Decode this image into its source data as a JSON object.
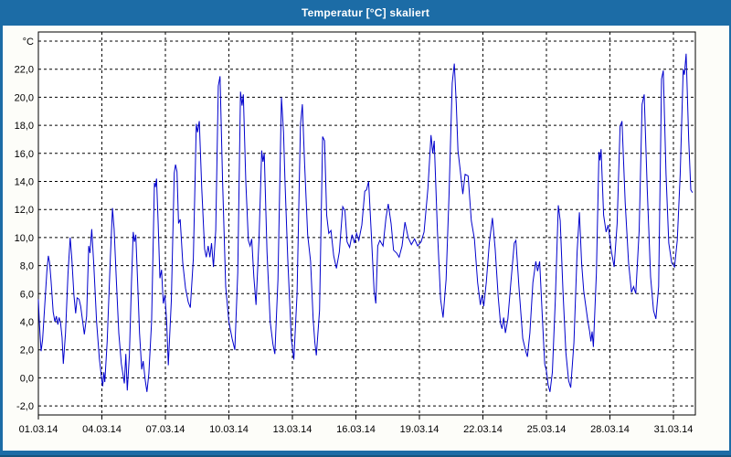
{
  "window": {
    "title": "Temperatur [°C] skaliert"
  },
  "colors": {
    "titlebar_bg": "#1C6CA6",
    "titlebar_text": "#FFFFFF",
    "window_border": "#1C6CA6",
    "content_bg": "#FDFDF9",
    "plot_bg": "#FFFFFF",
    "grid_line": "#000000",
    "axis_line": "#000000",
    "tick_label": "#000000",
    "series_line": "#0000CC"
  },
  "chart_data": {
    "type": "line",
    "title": "Temperatur [°C] skaliert",
    "xlabel": "",
    "ylabel": "°C",
    "grid": "dashed",
    "legend": "none",
    "x_axis": {
      "unit": "date (day of March 2014)",
      "min_day": 1,
      "max_day": 32.05,
      "ticks": [
        {
          "day": 1,
          "label": "01.03.14"
        },
        {
          "day": 4,
          "label": "04.03.14"
        },
        {
          "day": 7,
          "label": "07.03.14"
        },
        {
          "day": 10,
          "label": "10.03.14"
        },
        {
          "day": 13,
          "label": "13.03.14"
        },
        {
          "day": 16,
          "label": "16.03.14"
        },
        {
          "day": 19,
          "label": "19.03.14"
        },
        {
          "day": 22,
          "label": "22.03.14"
        },
        {
          "day": 25,
          "label": "25.03.14"
        },
        {
          "day": 28,
          "label": "28.03.14"
        },
        {
          "day": 31,
          "label": "31.03.14"
        }
      ]
    },
    "y_axis": {
      "unit": "°C",
      "grid_min": -2,
      "grid_max": 24,
      "grid_step": 2,
      "ticks": [
        {
          "value": 24,
          "label": "°C"
        },
        {
          "value": 22,
          "label": "22,0"
        },
        {
          "value": 20,
          "label": "20,0"
        },
        {
          "value": 18,
          "label": "18,0"
        },
        {
          "value": 16,
          "label": "16,0"
        },
        {
          "value": 14,
          "label": "14,0"
        },
        {
          "value": 12,
          "label": "12,0"
        },
        {
          "value": 10,
          "label": "10,0"
        },
        {
          "value": 8,
          "label": "8,0"
        },
        {
          "value": 6,
          "label": "6,0"
        },
        {
          "value": 4,
          "label": "4,0"
        },
        {
          "value": 2,
          "label": "2,0"
        },
        {
          "value": 0,
          "label": "0,0"
        },
        {
          "value": -2,
          "label": "-2,0"
        }
      ]
    },
    "series": [
      {
        "name": "Temperatur",
        "color": "#0000CC",
        "points": [
          [
            1.0,
            5.6
          ],
          [
            1.04,
            4.2
          ],
          [
            1.08,
            3.0
          ],
          [
            1.13,
            1.9
          ],
          [
            1.2,
            2.7
          ],
          [
            1.3,
            5.2
          ],
          [
            1.4,
            7.6
          ],
          [
            1.47,
            8.7
          ],
          [
            1.53,
            8.2
          ],
          [
            1.6,
            6.9
          ],
          [
            1.7,
            4.7
          ],
          [
            1.78,
            4.0
          ],
          [
            1.85,
            4.4
          ],
          [
            1.92,
            3.8
          ],
          [
            1.98,
            4.3
          ],
          [
            2.05,
            3.9
          ],
          [
            2.12,
            2.9
          ],
          [
            2.18,
            1.0
          ],
          [
            2.28,
            3.2
          ],
          [
            2.4,
            7.4
          ],
          [
            2.5,
            10.0
          ],
          [
            2.58,
            8.5
          ],
          [
            2.68,
            5.9
          ],
          [
            2.76,
            4.6
          ],
          [
            2.83,
            5.7
          ],
          [
            2.92,
            5.6
          ],
          [
            3.0,
            5.1
          ],
          [
            3.1,
            3.9
          ],
          [
            3.17,
            3.1
          ],
          [
            3.28,
            4.4
          ],
          [
            3.38,
            9.4
          ],
          [
            3.44,
            8.9
          ],
          [
            3.52,
            10.6
          ],
          [
            3.62,
            8.0
          ],
          [
            3.75,
            4.0
          ],
          [
            3.88,
            1.4
          ],
          [
            4.0,
            -0.2
          ],
          [
            4.04,
            -0.6
          ],
          [
            4.09,
            0.4
          ],
          [
            4.14,
            -0.3
          ],
          [
            4.25,
            2.6
          ],
          [
            4.4,
            8.6
          ],
          [
            4.5,
            12.1
          ],
          [
            4.58,
            10.6
          ],
          [
            4.68,
            7.0
          ],
          [
            4.8,
            3.2
          ],
          [
            4.92,
            1.0
          ],
          [
            5.0,
            0.2
          ],
          [
            5.06,
            -0.4
          ],
          [
            5.13,
            1.7
          ],
          [
            5.2,
            -0.9
          ],
          [
            5.3,
            1.6
          ],
          [
            5.4,
            6.8
          ],
          [
            5.48,
            10.4
          ],
          [
            5.54,
            9.7
          ],
          [
            5.6,
            10.2
          ],
          [
            5.68,
            7.2
          ],
          [
            5.78,
            3.2
          ],
          [
            5.88,
            0.6
          ],
          [
            5.95,
            1.2
          ],
          [
            6.05,
            -0.2
          ],
          [
            6.13,
            -1.0
          ],
          [
            6.22,
            0.3
          ],
          [
            6.35,
            4.0
          ],
          [
            6.48,
            13.9
          ],
          [
            6.53,
            13.6
          ],
          [
            6.58,
            14.2
          ],
          [
            6.66,
            11.0
          ],
          [
            6.74,
            7.1
          ],
          [
            6.82,
            7.7
          ],
          [
            6.9,
            5.3
          ],
          [
            6.98,
            5.9
          ],
          [
            7.06,
            4.0
          ],
          [
            7.14,
            0.9
          ],
          [
            7.28,
            5.5
          ],
          [
            7.42,
            14.6
          ],
          [
            7.48,
            15.2
          ],
          [
            7.55,
            14.7
          ],
          [
            7.62,
            11.0
          ],
          [
            7.7,
            11.3
          ],
          [
            7.82,
            8.2
          ],
          [
            7.95,
            6.4
          ],
          [
            8.08,
            5.4
          ],
          [
            8.18,
            5.0
          ],
          [
            8.32,
            8.5
          ],
          [
            8.46,
            18.1
          ],
          [
            8.52,
            17.5
          ],
          [
            8.6,
            18.3
          ],
          [
            8.72,
            13.5
          ],
          [
            8.85,
            9.2
          ],
          [
            8.93,
            8.6
          ],
          [
            9.02,
            9.4
          ],
          [
            9.1,
            8.6
          ],
          [
            9.18,
            9.6
          ],
          [
            9.27,
            7.9
          ],
          [
            9.38,
            10.5
          ],
          [
            9.5,
            20.8
          ],
          [
            9.58,
            21.5
          ],
          [
            9.7,
            14.0
          ],
          [
            9.85,
            6.5
          ],
          [
            10.0,
            4.0
          ],
          [
            10.15,
            2.8
          ],
          [
            10.28,
            2.0
          ],
          [
            10.42,
            7.5
          ],
          [
            10.55,
            20.4
          ],
          [
            10.62,
            19.4
          ],
          [
            10.68,
            20.2
          ],
          [
            10.8,
            14.0
          ],
          [
            10.92,
            9.8
          ],
          [
            11.0,
            9.4
          ],
          [
            11.08,
            9.9
          ],
          [
            11.18,
            7.2
          ],
          [
            11.28,
            5.2
          ],
          [
            11.42,
            9.8
          ],
          [
            11.55,
            16.2
          ],
          [
            11.61,
            15.4
          ],
          [
            11.67,
            16.0
          ],
          [
            11.8,
            9.0
          ],
          [
            11.95,
            4.0
          ],
          [
            12.08,
            2.4
          ],
          [
            12.17,
            1.7
          ],
          [
            12.32,
            7.0
          ],
          [
            12.48,
            20.0
          ],
          [
            12.58,
            17.5
          ],
          [
            12.65,
            14.0
          ],
          [
            12.78,
            8.5
          ],
          [
            12.95,
            2.8
          ],
          [
            13.07,
            1.3
          ],
          [
            13.22,
            6.0
          ],
          [
            13.38,
            18.0
          ],
          [
            13.47,
            19.5
          ],
          [
            13.58,
            15.2
          ],
          [
            13.72,
            10.2
          ],
          [
            13.86,
            8.3
          ],
          [
            13.98,
            4.2
          ],
          [
            14.06,
            2.5
          ],
          [
            14.13,
            1.6
          ],
          [
            14.28,
            4.8
          ],
          [
            14.43,
            17.2
          ],
          [
            14.52,
            16.9
          ],
          [
            14.62,
            11.6
          ],
          [
            14.72,
            10.3
          ],
          [
            14.82,
            10.5
          ],
          [
            14.95,
            8.7
          ],
          [
            15.08,
            7.8
          ],
          [
            15.22,
            9.0
          ],
          [
            15.38,
            12.2
          ],
          [
            15.48,
            11.9
          ],
          [
            15.58,
            9.7
          ],
          [
            15.7,
            9.3
          ],
          [
            15.82,
            10.2
          ],
          [
            15.93,
            9.6
          ],
          [
            16.03,
            10.3
          ],
          [
            16.14,
            9.8
          ],
          [
            16.28,
            10.9
          ],
          [
            16.42,
            13.3
          ],
          [
            16.5,
            13.4
          ],
          [
            16.6,
            14.0
          ],
          [
            16.73,
            10.2
          ],
          [
            16.86,
            6.2
          ],
          [
            16.94,
            5.3
          ],
          [
            17.03,
            9.4
          ],
          [
            17.13,
            9.8
          ],
          [
            17.28,
            9.4
          ],
          [
            17.42,
            11.4
          ],
          [
            17.53,
            12.4
          ],
          [
            17.66,
            11.0
          ],
          [
            17.78,
            9.1
          ],
          [
            17.92,
            8.9
          ],
          [
            18.04,
            8.6
          ],
          [
            18.18,
            9.4
          ],
          [
            18.32,
            11.1
          ],
          [
            18.47,
            10.0
          ],
          [
            18.62,
            9.5
          ],
          [
            18.77,
            9.9
          ],
          [
            18.92,
            9.4
          ],
          [
            19.08,
            9.7
          ],
          [
            19.22,
            10.4
          ],
          [
            19.4,
            13.5
          ],
          [
            19.55,
            17.3
          ],
          [
            19.63,
            16.0
          ],
          [
            19.7,
            16.9
          ],
          [
            19.85,
            10.5
          ],
          [
            20.0,
            5.6
          ],
          [
            20.12,
            4.3
          ],
          [
            20.26,
            7.0
          ],
          [
            20.4,
            13.0
          ],
          [
            20.55,
            21.0
          ],
          [
            20.65,
            22.4
          ],
          [
            20.74,
            19.6
          ],
          [
            20.82,
            16.2
          ],
          [
            20.92,
            14.9
          ],
          [
            21.05,
            13.1
          ],
          [
            21.16,
            14.5
          ],
          [
            21.3,
            14.4
          ],
          [
            21.45,
            11.2
          ],
          [
            21.6,
            9.9
          ],
          [
            21.75,
            6.8
          ],
          [
            21.88,
            5.2
          ],
          [
            21.96,
            5.9
          ],
          [
            22.04,
            5.1
          ],
          [
            22.16,
            6.8
          ],
          [
            22.3,
            9.6
          ],
          [
            22.45,
            11.4
          ],
          [
            22.58,
            9.2
          ],
          [
            22.72,
            5.8
          ],
          [
            22.83,
            3.9
          ],
          [
            22.9,
            3.5
          ],
          [
            22.98,
            4.3
          ],
          [
            23.06,
            3.2
          ],
          [
            23.18,
            4.2
          ],
          [
            23.32,
            6.8
          ],
          [
            23.48,
            9.6
          ],
          [
            23.56,
            9.8
          ],
          [
            23.7,
            6.5
          ],
          [
            23.88,
            2.8
          ],
          [
            24.02,
            1.9
          ],
          [
            24.1,
            1.5
          ],
          [
            24.22,
            3.2
          ],
          [
            24.36,
            6.8
          ],
          [
            24.5,
            8.3
          ],
          [
            24.58,
            7.6
          ],
          [
            24.68,
            8.3
          ],
          [
            24.8,
            4.5
          ],
          [
            24.92,
            1.0
          ],
          [
            25.0,
            0.5
          ],
          [
            25.08,
            -0.5
          ],
          [
            25.17,
            -1.0
          ],
          [
            25.28,
            0.4
          ],
          [
            25.42,
            5.5
          ],
          [
            25.56,
            12.3
          ],
          [
            25.65,
            11.2
          ],
          [
            25.78,
            6.2
          ],
          [
            25.92,
            1.8
          ],
          [
            26.05,
            -0.2
          ],
          [
            26.15,
            -0.7
          ],
          [
            26.3,
            2.5
          ],
          [
            26.45,
            9.0
          ],
          [
            26.56,
            11.8
          ],
          [
            26.66,
            8.2
          ],
          [
            26.76,
            6.2
          ],
          [
            26.86,
            5.1
          ],
          [
            26.95,
            4.1
          ],
          [
            27.04,
            3.3
          ],
          [
            27.1,
            2.6
          ],
          [
            27.16,
            3.3
          ],
          [
            27.22,
            2.2
          ],
          [
            27.36,
            7.5
          ],
          [
            27.48,
            16.1
          ],
          [
            27.53,
            15.5
          ],
          [
            27.58,
            16.3
          ],
          [
            27.7,
            11.6
          ],
          [
            27.82,
            10.4
          ],
          [
            27.92,
            10.9
          ],
          [
            28.06,
            9.1
          ],
          [
            28.2,
            7.9
          ],
          [
            28.34,
            11.0
          ],
          [
            28.48,
            17.9
          ],
          [
            28.57,
            18.3
          ],
          [
            28.72,
            12.5
          ],
          [
            28.88,
            8.2
          ],
          [
            29.02,
            6.1
          ],
          [
            29.12,
            6.5
          ],
          [
            29.22,
            6.0
          ],
          [
            29.38,
            10.5
          ],
          [
            29.52,
            19.5
          ],
          [
            29.62,
            20.2
          ],
          [
            29.76,
            13.5
          ],
          [
            29.92,
            7.2
          ],
          [
            30.06,
            4.8
          ],
          [
            30.17,
            4.2
          ],
          [
            30.3,
            6.5
          ],
          [
            30.44,
            21.3
          ],
          [
            30.52,
            21.9
          ],
          [
            30.65,
            14.5
          ],
          [
            30.78,
            9.6
          ],
          [
            30.92,
            8.2
          ],
          [
            31.05,
            7.9
          ],
          [
            31.18,
            9.8
          ],
          [
            31.32,
            14.5
          ],
          [
            31.46,
            22.0
          ],
          [
            31.52,
            21.6
          ],
          [
            31.6,
            23.1
          ],
          [
            31.72,
            17.0
          ],
          [
            31.82,
            13.4
          ],
          [
            31.9,
            13.2
          ]
        ]
      }
    ]
  }
}
